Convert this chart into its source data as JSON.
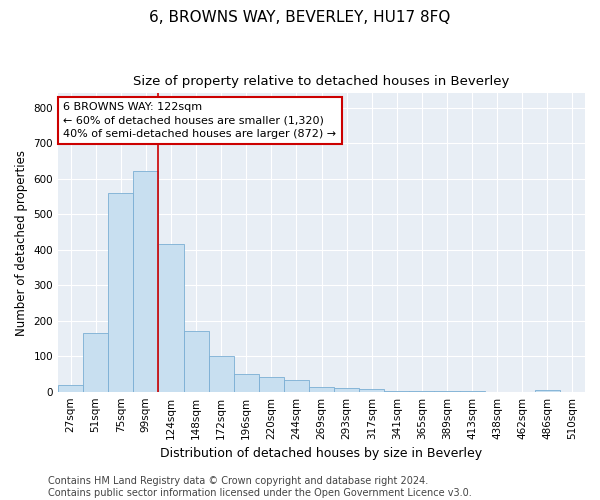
{
  "title": "6, BROWNS WAY, BEVERLEY, HU17 8FQ",
  "subtitle": "Size of property relative to detached houses in Beverley",
  "xlabel": "Distribution of detached houses by size in Beverley",
  "ylabel": "Number of detached properties",
  "bar_color": "#c8dff0",
  "bar_edge_color": "#7aaed4",
  "categories": [
    "27sqm",
    "51sqm",
    "75sqm",
    "99sqm",
    "124sqm",
    "148sqm",
    "172sqm",
    "196sqm",
    "220sqm",
    "244sqm",
    "269sqm",
    "293sqm",
    "317sqm",
    "341sqm",
    "365sqm",
    "389sqm",
    "413sqm",
    "438sqm",
    "462sqm",
    "486sqm",
    "510sqm"
  ],
  "values": [
    18,
    165,
    560,
    620,
    415,
    170,
    100,
    50,
    40,
    33,
    13,
    10,
    7,
    2,
    2,
    2,
    1,
    0,
    0,
    6,
    0
  ],
  "vline_x_index": 4,
  "vline_color": "#cc0000",
  "annotation_line1": "6 BROWNS WAY: 122sqm",
  "annotation_line2": "← 60% of detached houses are smaller (1,320)",
  "annotation_line3": "40% of semi-detached houses are larger (872) →",
  "annotation_box_color": "#ffffff",
  "annotation_box_edge_color": "#cc0000",
  "ylim": [
    0,
    840
  ],
  "yticks": [
    0,
    100,
    200,
    300,
    400,
    500,
    600,
    700,
    800
  ],
  "footer_line1": "Contains HM Land Registry data © Crown copyright and database right 2024.",
  "footer_line2": "Contains public sector information licensed under the Open Government Licence v3.0.",
  "background_color": "#ffffff",
  "plot_bg_color": "#e8eef5",
  "grid_color": "#ffffff",
  "title_fontsize": 11,
  "subtitle_fontsize": 9.5,
  "xlabel_fontsize": 9,
  "ylabel_fontsize": 8.5,
  "annotation_fontsize": 8,
  "tick_fontsize": 7.5,
  "footer_fontsize": 7
}
